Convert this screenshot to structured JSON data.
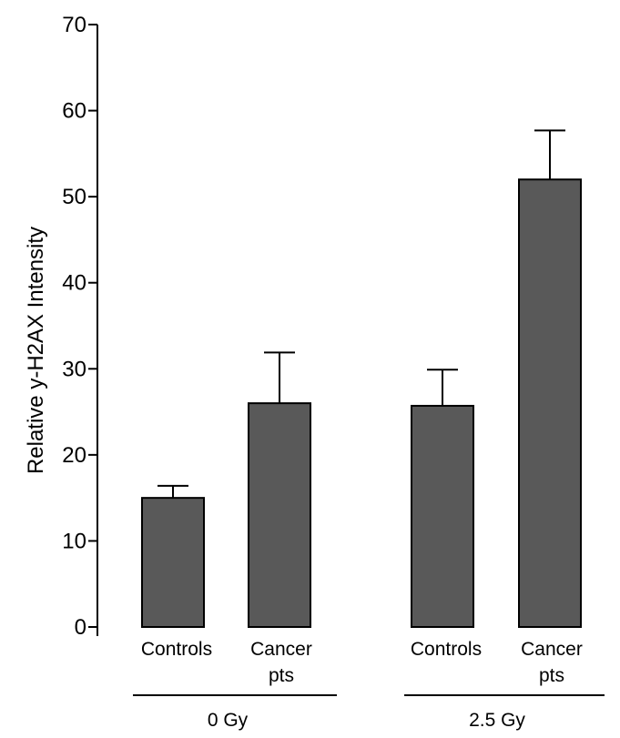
{
  "chart_data": {
    "type": "bar",
    "ylabel": "Relative y-H2AX Intensity",
    "xlabel": "",
    "ylim": [
      0,
      70
    ],
    "yticks": [
      0,
      10,
      20,
      30,
      40,
      50,
      60,
      70
    ],
    "categories": [
      {
        "lines": [
          "Controls"
        ],
        "group": "0 Gy"
      },
      {
        "lines": [
          "Cancer",
          "pts"
        ],
        "group": "0 Gy"
      },
      {
        "lines": [
          "Controls"
        ],
        "group": "2.5 Gy"
      },
      {
        "lines": [
          "Cancer",
          "pts"
        ],
        "group": "2.5 Gy"
      }
    ],
    "values": [
      15,
      26,
      25.7,
      52
    ],
    "error_upper": [
      1.4,
      5.9,
      4.2,
      5.7
    ],
    "groups": [
      "0 Gy",
      "2.5 Gy"
    ],
    "bar_color": "#595959",
    "grid": false
  }
}
